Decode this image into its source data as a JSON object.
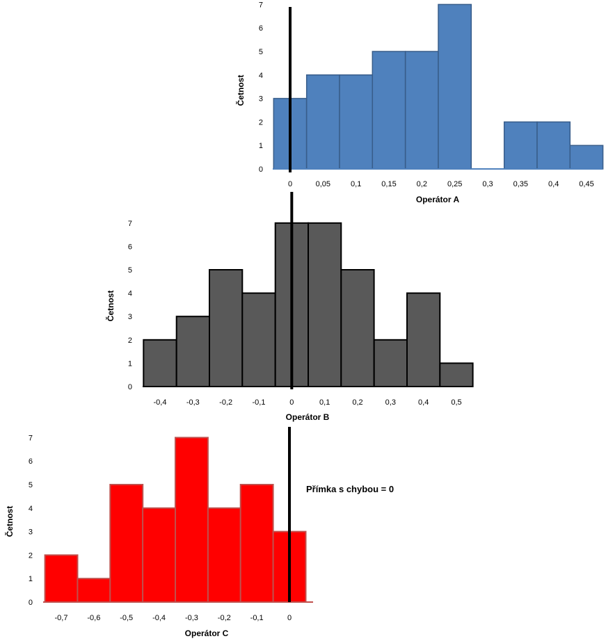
{
  "annotation": "Přímka s chybou = 0",
  "chart_data": [
    {
      "type": "bar",
      "xlabel": "Operátor A",
      "ylabel": "Četnost",
      "color": "#4F81BD",
      "edge_color": "#385D8A",
      "bin_width": 0.05,
      "x_ticks": [
        "0",
        "0,05",
        "0,1",
        "0,15",
        "0,2",
        "0,25",
        "0,3",
        "0,35",
        "0,4",
        "0,45"
      ],
      "y_ticks": [
        "0",
        "1",
        "2",
        "3",
        "4",
        "5",
        "6",
        "7"
      ],
      "ylim": [
        0,
        7
      ],
      "bins": [
        {
          "center": 0.0,
          "count": 3
        },
        {
          "center": 0.05,
          "count": 4
        },
        {
          "center": 0.1,
          "count": 4
        },
        {
          "center": 0.15,
          "count": 5
        },
        {
          "center": 0.2,
          "count": 5
        },
        {
          "center": 0.25,
          "count": 7
        },
        {
          "center": 0.3,
          "count": 0
        },
        {
          "center": 0.35,
          "count": 2
        },
        {
          "center": 0.4,
          "count": 2
        },
        {
          "center": 0.45,
          "count": 1
        }
      ],
      "zero_line": 0
    },
    {
      "type": "bar",
      "xlabel": "Operátor B",
      "ylabel": "Četnost",
      "color": "#595959",
      "edge_color": "#000000",
      "bin_width": 0.1,
      "x_ticks": [
        "-0,4",
        "-0,3",
        "-0,2",
        "-0,1",
        "0",
        "0,1",
        "0,2",
        "0,3",
        "0,4",
        "0,5"
      ],
      "y_ticks": [
        "0",
        "1",
        "2",
        "3",
        "4",
        "5",
        "6",
        "7"
      ],
      "ylim": [
        0,
        7
      ],
      "bins": [
        {
          "center": -0.4,
          "count": 2
        },
        {
          "center": -0.3,
          "count": 3
        },
        {
          "center": -0.2,
          "count": 5
        },
        {
          "center": -0.1,
          "count": 4
        },
        {
          "center": 0.0,
          "count": 7
        },
        {
          "center": 0.1,
          "count": 7
        },
        {
          "center": 0.2,
          "count": 5
        },
        {
          "center": 0.3,
          "count": 2
        },
        {
          "center": 0.4,
          "count": 4
        },
        {
          "center": 0.5,
          "count": 1
        }
      ],
      "zero_line": 0
    },
    {
      "type": "bar",
      "xlabel": "Operátor C",
      "ylabel": "Četnost",
      "color": "#FF0000",
      "edge_color": "#C0504D",
      "bin_width": 0.1,
      "x_ticks": [
        "-0,7",
        "-0,6",
        "-0,5",
        "-0,4",
        "-0,3",
        "-0,2",
        "-0,1",
        "0"
      ],
      "y_ticks": [
        "0",
        "1",
        "2",
        "3",
        "4",
        "5",
        "6",
        "7"
      ],
      "ylim": [
        0,
        7
      ],
      "bins": [
        {
          "center": -0.7,
          "count": 2
        },
        {
          "center": -0.6,
          "count": 1
        },
        {
          "center": -0.5,
          "count": 5
        },
        {
          "center": -0.4,
          "count": 4
        },
        {
          "center": -0.3,
          "count": 7
        },
        {
          "center": -0.2,
          "count": 4
        },
        {
          "center": -0.1,
          "count": 5
        },
        {
          "center": 0.0,
          "count": 3
        }
      ],
      "zero_line": 0
    }
  ]
}
